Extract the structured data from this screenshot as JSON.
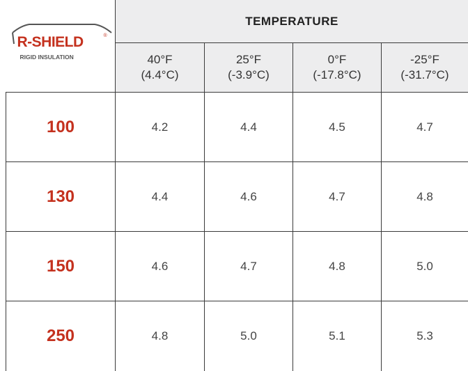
{
  "logo": {
    "name": "R-SHIELD",
    "mark": "®",
    "tagline": "RIGID INSULATION"
  },
  "table": {
    "group_header": "TEMPERATURE",
    "columns": [
      [
        "40°F",
        "(4.4°C)"
      ],
      [
        "25°F",
        "(-3.9°C)"
      ],
      [
        "0°F",
        "(-17.8°C)"
      ],
      [
        "-25°F",
        "(-31.7°C)"
      ]
    ],
    "rows": [
      [
        "100",
        "4.2",
        "4.4",
        "4.5",
        "4.7"
      ],
      [
        "130",
        "4.4",
        "4.6",
        "4.7",
        "4.8"
      ],
      [
        "150",
        "4.6",
        "4.7",
        "4.8",
        "5.0"
      ],
      [
        "250",
        "4.8",
        "5.0",
        "5.1",
        "5.3"
      ]
    ]
  }
}
